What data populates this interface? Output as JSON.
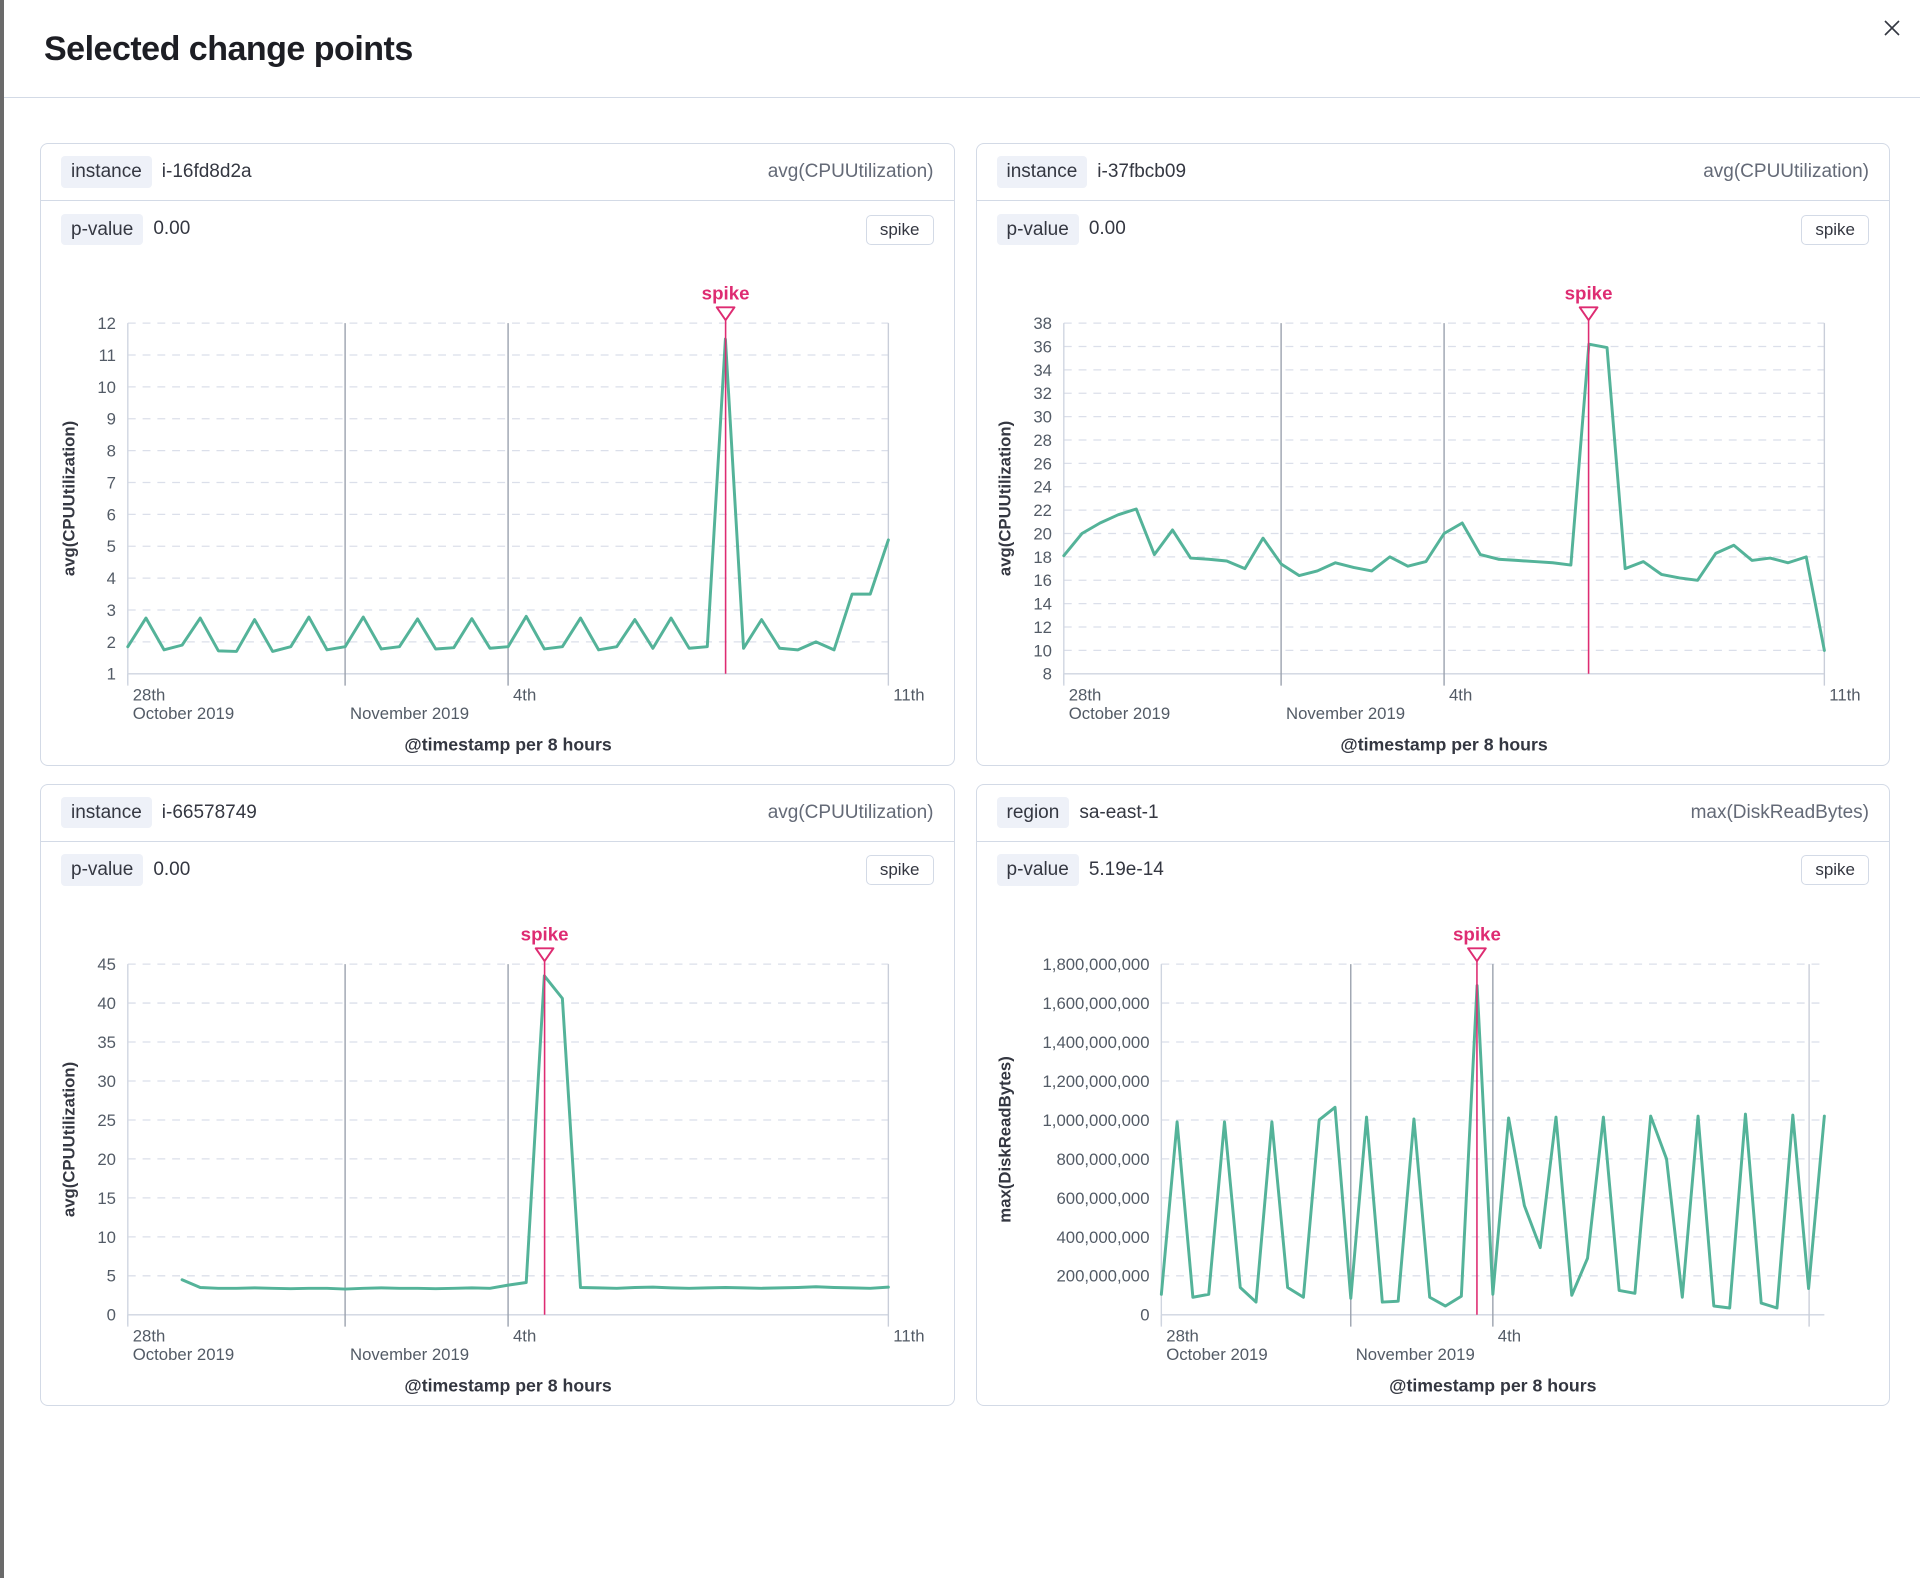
{
  "modal": {
    "title": "Selected change points",
    "close_icon": "close-icon"
  },
  "colors": {
    "series_green": "#54B399",
    "annotation_pink": "#DE2C72",
    "grid": "#dbdfea",
    "axis": "#cfd5e0",
    "event_line_strong": "#9aa1ad",
    "event_line_light": "#c9ced9",
    "tick_text": "#535b66",
    "axis_title_text": "#343741"
  },
  "panels": [
    {
      "key_label": "instance",
      "key_value": "i-16fd8d2a",
      "metric": "avg(CPUUtilization)",
      "pvalue_label": "p-value",
      "pvalue": "0.00",
      "change_type": "spike",
      "chart_data": {
        "type": "line",
        "annotation_label": "spike",
        "spike_pos": 0.786,
        "xlabel": "@timestamp per 8 hours",
        "ylabel": "avg(CPUUtilization)",
        "ylim": [
          1,
          12
        ],
        "y_tick_labels": [
          "1",
          "2",
          "3",
          "4",
          "5",
          "6",
          "7",
          "8",
          "9",
          "10",
          "11",
          "12"
        ],
        "y_tick_values": [
          1,
          2,
          3,
          4,
          5,
          6,
          7,
          8,
          9,
          10,
          11,
          12
        ],
        "x_ticks": [
          {
            "pos": 0,
            "line1": "28th",
            "line2": "October 2019",
            "grid": "tick"
          },
          {
            "pos": 0.2857,
            "line1": "",
            "line2": "November 2019",
            "grid": "strong"
          },
          {
            "pos": 0.5,
            "line1": "4th",
            "line2": "",
            "grid": "strong"
          },
          {
            "pos": 1,
            "line1": "11th",
            "line2": "",
            "grid": "light"
          }
        ],
        "values": [
          1.85,
          2.75,
          1.75,
          1.9,
          2.75,
          1.72,
          1.7,
          2.7,
          1.7,
          1.85,
          2.78,
          1.75,
          1.85,
          2.78,
          1.78,
          1.85,
          2.72,
          1.78,
          1.82,
          2.73,
          1.8,
          1.85,
          2.8,
          1.78,
          1.85,
          2.75,
          1.75,
          1.85,
          2.7,
          1.8,
          2.75,
          1.8,
          1.85,
          11.5,
          1.8,
          2.7,
          1.8,
          1.75,
          2.0,
          1.75,
          3.5,
          3.5,
          5.2
        ]
      }
    },
    {
      "key_label": "instance",
      "key_value": "i-37fbcb09",
      "metric": "avg(CPUUtilization)",
      "pvalue_label": "p-value",
      "pvalue": "0.00",
      "change_type": "spike",
      "chart_data": {
        "type": "line",
        "annotation_label": "spike",
        "spike_pos": 0.69,
        "xlabel": "@timestamp per 8 hours",
        "ylabel": "avg(CPUUtilization)",
        "ylim": [
          8,
          38
        ],
        "y_tick_labels": [
          "8",
          "10",
          "12",
          "14",
          "16",
          "18",
          "20",
          "22",
          "24",
          "26",
          "28",
          "30",
          "32",
          "34",
          "36",
          "38"
        ],
        "y_tick_values": [
          8,
          10,
          12,
          14,
          16,
          18,
          20,
          22,
          24,
          26,
          28,
          30,
          32,
          34,
          36,
          38
        ],
        "x_ticks": [
          {
            "pos": 0,
            "line1": "28th",
            "line2": "October 2019",
            "grid": "tick"
          },
          {
            "pos": 0.2857,
            "line1": "",
            "line2": "November 2019",
            "grid": "strong"
          },
          {
            "pos": 0.5,
            "line1": "4th",
            "line2": "",
            "grid": "strong"
          },
          {
            "pos": 1,
            "line1": "11th",
            "line2": "",
            "grid": "light"
          }
        ],
        "values": [
          18.1,
          20.0,
          20.9,
          21.6,
          22.1,
          18.2,
          20.3,
          17.9,
          17.8,
          17.65,
          17.0,
          19.6,
          17.4,
          16.4,
          16.8,
          17.5,
          17.1,
          16.8,
          18.0,
          17.2,
          17.6,
          20.0,
          20.9,
          18.2,
          17.8,
          17.7,
          17.6,
          17.5,
          17.3,
          36.2,
          35.9,
          17.0,
          17.6,
          16.5,
          16.2,
          16.0,
          18.3,
          19.0,
          17.7,
          17.9,
          17.5,
          18.0,
          10.0
        ]
      }
    },
    {
      "key_label": "instance",
      "key_value": "i-66578749",
      "metric": "avg(CPUUtilization)",
      "pvalue_label": "p-value",
      "pvalue": "0.00",
      "change_type": "spike",
      "chart_data": {
        "type": "line",
        "annotation_label": "spike",
        "spike_pos": 0.548,
        "xlabel": "@timestamp per 8 hours",
        "ylabel": "avg(CPUUtilization)",
        "ylim": [
          0,
          45
        ],
        "y_tick_labels": [
          "0",
          "5",
          "10",
          "15",
          "20",
          "25",
          "30",
          "35",
          "40",
          "45"
        ],
        "y_tick_values": [
          0,
          5,
          10,
          15,
          20,
          25,
          30,
          35,
          40,
          45
        ],
        "x_ticks": [
          {
            "pos": 0,
            "line1": "28th",
            "line2": "October 2019",
            "grid": "tick"
          },
          {
            "pos": 0.2857,
            "line1": "",
            "line2": "November 2019",
            "grid": "strong"
          },
          {
            "pos": 0.5,
            "line1": "4th",
            "line2": "",
            "grid": "strong"
          },
          {
            "pos": 1,
            "line1": "11th",
            "line2": "",
            "grid": "light"
          }
        ],
        "values": [
          null,
          null,
          null,
          4.5,
          3.5,
          3.4,
          3.4,
          3.45,
          3.4,
          3.35,
          3.4,
          3.4,
          3.3,
          3.4,
          3.45,
          3.4,
          3.4,
          3.35,
          3.4,
          3.45,
          3.4,
          3.8,
          4.15,
          43.5,
          40.6,
          3.5,
          3.45,
          3.4,
          3.5,
          3.55,
          3.45,
          3.4,
          3.45,
          3.5,
          3.45,
          3.4,
          3.45,
          3.5,
          3.6,
          3.5,
          3.45,
          3.4,
          3.55
        ]
      }
    },
    {
      "key_label": "region",
      "key_value": "sa-east-1",
      "metric": "max(DiskReadBytes)",
      "pvalue_label": "p-value",
      "pvalue": "5.19e-14",
      "change_type": "spike",
      "chart_data": {
        "type": "line",
        "annotation_label": "spike",
        "spike_pos": 0.476,
        "xlabel": "@timestamp per 8 hours",
        "ylabel": "max(DiskReadBytes)",
        "ylim": [
          0,
          1800000000
        ],
        "y_tick_labels": [
          "0",
          "200,000,000",
          "400,000,000",
          "600,000,000",
          "800,000,000",
          "1,000,000,000",
          "1,200,000,000",
          "1,400,000,000",
          "1,600,000,000",
          "1,800,000,000"
        ],
        "y_tick_values": [
          0,
          200000000,
          400000000,
          600000000,
          800000000,
          1000000000,
          1200000000,
          1400000000,
          1600000000,
          1800000000
        ],
        "x_ticks": [
          {
            "pos": 0,
            "line1": "28th",
            "line2": "October 2019",
            "grid": "tick"
          },
          {
            "pos": 0.2857,
            "line1": "",
            "line2": "November 2019",
            "grid": "strong"
          },
          {
            "pos": 0.5,
            "line1": "4th",
            "line2": "",
            "grid": "strong"
          },
          {
            "pos": 0.977,
            "line1": "",
            "line2": "",
            "grid": "light"
          }
        ],
        "values": [
          105000000,
          990000000,
          90000000,
          105000000,
          990000000,
          140000000,
          65000000,
          990000000,
          140000000,
          90000000,
          1000000000,
          1065000000,
          85000000,
          1015000000,
          65000000,
          70000000,
          1005000000,
          90000000,
          45000000,
          95000000,
          1690000000,
          105000000,
          1010000000,
          560000000,
          345000000,
          1015000000,
          100000000,
          290000000,
          1015000000,
          125000000,
          110000000,
          1020000000,
          800000000,
          90000000,
          1020000000,
          45000000,
          35000000,
          1030000000,
          60000000,
          35000000,
          1025000000,
          135000000,
          1020000000
        ]
      }
    }
  ]
}
